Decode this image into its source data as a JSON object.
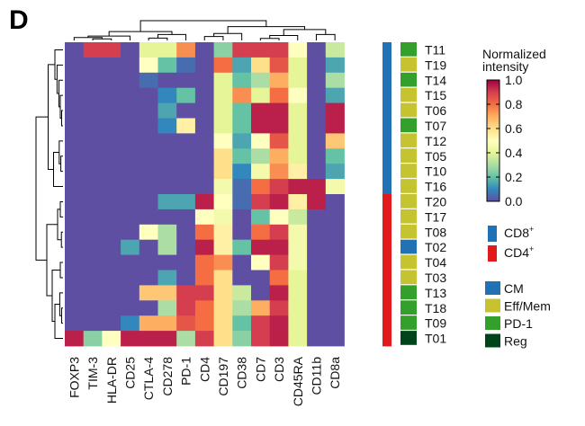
{
  "panel_label": "D",
  "chart_data": {
    "type": "heatmap",
    "markers": [
      "FOXP3",
      "TIM-3",
      "HLA-DR",
      "CD25",
      "CTLA-4",
      "CD278",
      "PD-1",
      "CD4",
      "CD197",
      "CD38",
      "CD7",
      "CD3",
      "CD45RA",
      "CD11b",
      "CD8a"
    ],
    "clusters": [
      "T11",
      "T19",
      "T14",
      "T15",
      "T06",
      "T07",
      "T12",
      "T05",
      "T10",
      "T16",
      "T20",
      "T17",
      "T08",
      "T02",
      "T04",
      "T03",
      "T13",
      "T18",
      "T09",
      "T01"
    ],
    "values": [
      [
        0.0,
        0.9,
        0.9,
        0.0,
        0.4,
        0.4,
        0.75,
        0.0,
        0.25,
        0.9,
        0.9,
        0.9,
        0.5,
        0.0,
        0.35
      ],
      [
        0.0,
        0.0,
        0.0,
        0.0,
        0.5,
        0.2,
        0.05,
        0.0,
        0.8,
        0.15,
        0.6,
        0.85,
        0.4,
        0.0,
        0.15
      ],
      [
        0.0,
        0.0,
        0.0,
        0.0,
        0.05,
        0.0,
        0.0,
        0.0,
        0.4,
        0.2,
        0.3,
        0.7,
        0.4,
        0.0,
        0.3
      ],
      [
        0.0,
        0.0,
        0.0,
        0.0,
        0.0,
        0.1,
        0.2,
        0.0,
        0.4,
        0.75,
        0.4,
        0.8,
        0.5,
        0.0,
        0.15
      ],
      [
        0.0,
        0.0,
        0.0,
        0.0,
        0.0,
        0.15,
        0.0,
        0.0,
        0.4,
        0.2,
        0.95,
        0.95,
        0.4,
        0.0,
        0.95
      ],
      [
        0.0,
        0.0,
        0.0,
        0.0,
        0.0,
        0.1,
        0.55,
        0.0,
        0.4,
        0.2,
        0.95,
        0.95,
        0.4,
        0.0,
        0.95
      ],
      [
        0.0,
        0.0,
        0.0,
        0.0,
        0.0,
        0.0,
        0.0,
        0.0,
        0.5,
        0.15,
        0.5,
        0.85,
        0.4,
        0.0,
        0.65
      ],
      [
        0.0,
        0.0,
        0.0,
        0.0,
        0.0,
        0.0,
        0.0,
        0.0,
        0.6,
        0.2,
        0.3,
        0.7,
        0.4,
        0.0,
        0.2
      ],
      [
        0.0,
        0.0,
        0.0,
        0.0,
        0.0,
        0.0,
        0.0,
        0.0,
        0.6,
        0.1,
        0.45,
        0.75,
        0.55,
        0.0,
        0.15
      ],
      [
        0.0,
        0.0,
        0.0,
        0.0,
        0.0,
        0.0,
        0.0,
        0.0,
        0.45,
        0.05,
        0.8,
        0.9,
        0.95,
        0.95,
        0.45
      ],
      [
        0.0,
        0.0,
        0.0,
        0.0,
        0.0,
        0.15,
        0.15,
        0.95,
        0.5,
        0.05,
        0.9,
        0.95,
        0.55,
        0.95,
        0.0
      ],
      [
        0.0,
        0.0,
        0.0,
        0.0,
        0.0,
        0.0,
        0.0,
        0.5,
        0.45,
        0.0,
        0.2,
        0.5,
        0.35,
        0.0,
        0.0
      ],
      [
        0.0,
        0.0,
        0.0,
        0.0,
        0.5,
        0.3,
        0.0,
        0.8,
        0.55,
        0.0,
        0.8,
        0.9,
        0.45,
        0.0,
        0.0
      ],
      [
        0.0,
        0.0,
        0.0,
        0.15,
        0.0,
        0.3,
        0.0,
        0.95,
        0.55,
        0.2,
        0.95,
        0.95,
        0.45,
        0.0,
        0.0
      ],
      [
        0.0,
        0.0,
        0.0,
        0.0,
        0.0,
        0.0,
        0.0,
        0.8,
        0.75,
        0.0,
        0.5,
        0.9,
        0.45,
        0.0,
        0.0
      ],
      [
        0.0,
        0.0,
        0.0,
        0.0,
        0.0,
        0.15,
        0.0,
        0.8,
        0.6,
        0.0,
        0.0,
        0.8,
        0.4,
        0.0,
        0.0
      ],
      [
        0.0,
        0.0,
        0.0,
        0.0,
        0.65,
        0.65,
        0.9,
        0.9,
        0.6,
        0.35,
        0.0,
        0.95,
        0.4,
        0.0,
        0.0
      ],
      [
        0.0,
        0.0,
        0.0,
        0.0,
        0.0,
        0.3,
        0.9,
        0.8,
        0.6,
        0.3,
        0.7,
        0.9,
        0.4,
        0.0,
        0.0
      ],
      [
        0.0,
        0.0,
        0.0,
        0.1,
        0.7,
        0.7,
        0.85,
        0.8,
        0.6,
        0.2,
        0.9,
        0.95,
        0.4,
        0.0,
        0.0
      ],
      [
        0.95,
        0.25,
        0.5,
        0.95,
        0.95,
        0.95,
        0.3,
        0.9,
        0.6,
        0.25,
        0.9,
        0.95,
        0.4,
        0.0,
        0.0
      ]
    ],
    "colorbar": {
      "title_line1": "Normalized",
      "title_line2": "intensity",
      "ticks": [
        "1.0",
        "0.8",
        "0.6",
        "0.4",
        "0.2",
        "0.0"
      ],
      "range": [
        0,
        1
      ]
    },
    "lineage_annotation": [
      "CD8",
      "CD8",
      "CD8",
      "CD8",
      "CD8",
      "CD8",
      "CD8",
      "CD8",
      "CD8",
      "CD8",
      "CD4",
      "CD4",
      "CD4",
      "CD4",
      "CD4",
      "CD4",
      "CD4",
      "CD4",
      "CD4",
      "CD4"
    ],
    "subtype_annotation": [
      "PD-1",
      "Eff/Mem",
      "PD-1",
      "Eff/Mem",
      "Eff/Mem",
      "PD-1",
      "Eff/Mem",
      "Eff/Mem",
      "Eff/Mem",
      "Eff/Mem",
      "Eff/Mem",
      "Eff/Mem",
      "Eff/Mem",
      "CM",
      "Eff/Mem",
      "Eff/Mem",
      "PD-1",
      "PD-1",
      "PD-1",
      "Reg"
    ],
    "lineage_legend": [
      {
        "base": "CD8",
        "sup": "+",
        "key": "CD8",
        "color": "#2171b5"
      },
      {
        "base": "CD4",
        "sup": "+",
        "key": "CD4",
        "color": "#e31a1c"
      }
    ],
    "subtype_legend": [
      {
        "label": "CM",
        "color": "#2171b5"
      },
      {
        "label": "Eff/Mem",
        "color": "#c5c430"
      },
      {
        "label": "PD-1",
        "color": "#33a02c"
      },
      {
        "label": "Reg",
        "color": "#00441b"
      }
    ]
  }
}
